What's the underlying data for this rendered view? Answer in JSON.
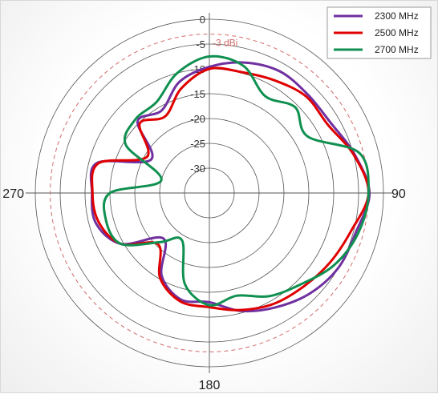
{
  "chart_data": {
    "type": "polar-line",
    "title": "",
    "r_unit": "dBi",
    "r_ticks": [
      0,
      -5,
      -10,
      -15,
      -20,
      -25,
      -30
    ],
    "r_tick_labels": [
      "0",
      "-5",
      "-10",
      "-15",
      "-20",
      "-25",
      "-30"
    ],
    "r_range": [
      -35,
      0
    ],
    "angle_labels": [
      "90",
      "180",
      "270"
    ],
    "angle_label_values": [
      90,
      180,
      270
    ],
    "reference_circle": {
      "value": -3,
      "label": "-3 dBi",
      "color": "#d26a6a"
    },
    "grid": true,
    "legend_position": "top-right",
    "series": [
      {
        "name": "2300 MHz",
        "color": "#7030a0",
        "points": [
          [
            0,
            -9.6
          ],
          [
            15,
            -7.8
          ],
          [
            30,
            -6.7
          ],
          [
            45,
            -7
          ],
          [
            60,
            -6.8
          ],
          [
            75,
            -4.8
          ],
          [
            90,
            -2.8
          ],
          [
            105,
            -4.5
          ],
          [
            120,
            -5
          ],
          [
            135,
            -6.4
          ],
          [
            150,
            -8.4
          ],
          [
            165,
            -10.4
          ],
          [
            180,
            -13
          ],
          [
            195,
            -12.8
          ],
          [
            210,
            -15.8
          ],
          [
            225,
            -22
          ],
          [
            240,
            -14.5
          ],
          [
            255,
            -11.4
          ],
          [
            270,
            -11.4
          ],
          [
            285,
            -11.6
          ],
          [
            300,
            -21.5
          ],
          [
            315,
            -14.6
          ],
          [
            330,
            -15.8
          ],
          [
            345,
            -11.8
          ],
          [
            360,
            -9.6
          ]
        ]
      },
      {
        "name": "2500 MHz",
        "color": "#e00000",
        "points": [
          [
            0,
            -10
          ],
          [
            15,
            -9.8
          ],
          [
            30,
            -8.8
          ],
          [
            45,
            -7.5
          ],
          [
            60,
            -7.5
          ],
          [
            75,
            -5
          ],
          [
            90,
            -3
          ],
          [
            105,
            -5.5
          ],
          [
            120,
            -7
          ],
          [
            135,
            -8.3
          ],
          [
            150,
            -9.2
          ],
          [
            165,
            -10.6
          ],
          [
            180,
            -12
          ],
          [
            195,
            -12.4
          ],
          [
            210,
            -15.2
          ],
          [
            225,
            -20.4
          ],
          [
            240,
            -14.5
          ],
          [
            255,
            -12
          ],
          [
            270,
            -11.5
          ],
          [
            285,
            -11.9
          ],
          [
            300,
            -20.5
          ],
          [
            315,
            -15.2
          ],
          [
            330,
            -17.2
          ],
          [
            345,
            -13.2
          ],
          [
            360,
            -10
          ]
        ]
      },
      {
        "name": "2700 MHz",
        "color": "#109050",
        "points": [
          [
            0,
            -7.5
          ],
          [
            15,
            -8.5
          ],
          [
            30,
            -12.5
          ],
          [
            45,
            -10.6
          ],
          [
            60,
            -12.2
          ],
          [
            75,
            -3.8
          ],
          [
            90,
            -3
          ],
          [
            105,
            -4
          ],
          [
            120,
            -6
          ],
          [
            135,
            -9
          ],
          [
            150,
            -11
          ],
          [
            165,
            -13.6
          ],
          [
            180,
            -12.4
          ],
          [
            195,
            -16
          ],
          [
            210,
            -24
          ],
          [
            225,
            -21
          ],
          [
            240,
            -14.5
          ],
          [
            255,
            -13.5
          ],
          [
            270,
            -15
          ],
          [
            285,
            -25
          ],
          [
            300,
            -15.6
          ],
          [
            315,
            -14
          ],
          [
            330,
            -13.8
          ],
          [
            345,
            -10
          ],
          [
            360,
            -7.5
          ]
        ]
      }
    ]
  }
}
